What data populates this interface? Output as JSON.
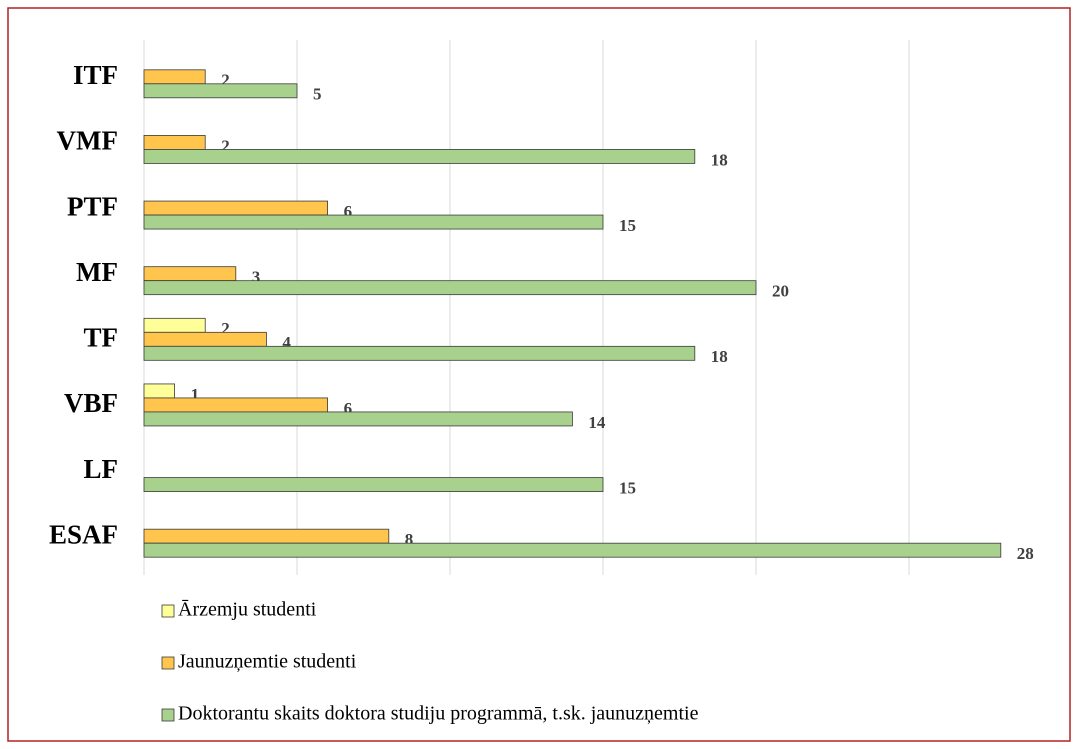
{
  "chart_data": {
    "type": "bar",
    "orientation": "horizontal",
    "categories": [
      "ITF",
      "VMF",
      "PTF",
      "MF",
      "TF",
      "VBF",
      "LF",
      "ESAF"
    ],
    "series": [
      {
        "name": "Ārzemju studenti",
        "color": "#ffff99",
        "values": [
          null,
          null,
          null,
          null,
          2,
          1,
          null,
          null
        ]
      },
      {
        "name": "Jaunuzņemtie studenti",
        "color": "#ffc54d",
        "values": [
          2,
          2,
          6,
          3,
          4,
          6,
          null,
          8
        ]
      },
      {
        "name": "Doktorantu skaits doktora studiju programmā, t.sk. jaunuzņemtie",
        "color": "#a9d18e",
        "values": [
          5,
          18,
          15,
          20,
          18,
          14,
          15,
          28
        ]
      }
    ],
    "xlim": [
      0,
      30
    ],
    "xticks": [
      0,
      5,
      10,
      15,
      20,
      25
    ],
    "grid": true,
    "legend": "bottom"
  }
}
